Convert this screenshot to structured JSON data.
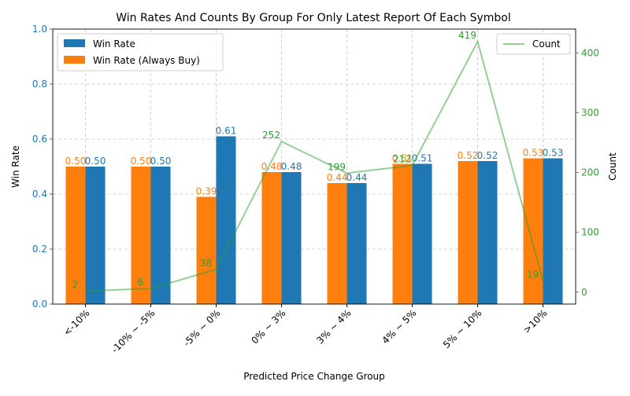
{
  "chart_data": {
    "type": "bar",
    "title": "Win Rates And Counts By Group For Only Latest Report Of Each Symbol",
    "xlabel": "Predicted Price Change Group",
    "ylabel": "Win Rate",
    "y2label": "Count",
    "ylim": [
      0,
      1.0
    ],
    "y2lim": [
      -20,
      440
    ],
    "yticks": [
      "0.0",
      "0.2",
      "0.4",
      "0.6",
      "0.8",
      "1.0"
    ],
    "y2ticks": [
      "0",
      "100",
      "200",
      "300",
      "400"
    ],
    "grid": true,
    "categories": [
      "<-10%",
      "-10% ~ -5%",
      "-5% ~ 0%",
      "0% ~ 3%",
      "3% ~ 4%",
      "4% ~ 5%",
      "5% ~ 10%",
      ">10%"
    ],
    "series": [
      {
        "name": "Win Rate (Always Buy)",
        "kind": "bar",
        "color": "#ff7f0e",
        "values": [
          0.5,
          0.5,
          0.39,
          0.48,
          0.44,
          0.51,
          0.52,
          0.53
        ],
        "labels": [
          "0.50",
          "0.50",
          "0.39",
          "0.48",
          "0.44",
          "0.51",
          "0.52",
          "0.53"
        ]
      },
      {
        "name": "Win Rate",
        "kind": "bar",
        "color": "#1f77b4",
        "values": [
          0.5,
          0.5,
          0.61,
          0.48,
          0.44,
          0.51,
          0.52,
          0.53
        ],
        "labels": [
          "0.50",
          "0.50",
          "0.61",
          "0.48",
          "0.44",
          "0.51",
          "0.52",
          "0.53"
        ]
      },
      {
        "name": "Count",
        "kind": "line",
        "axis": "right",
        "color": "#2ca02c",
        "values": [
          2,
          6,
          38,
          252,
          199,
          212,
          419,
          19
        ],
        "labels": [
          "2",
          "6",
          "38",
          "252",
          "199",
          "212",
          "419",
          "19"
        ]
      }
    ],
    "legend_left": [
      "Win Rate",
      "Win Rate (Always Buy)"
    ],
    "legend_right": [
      "Count"
    ],
    "legend_placement": "left: top-left, right: top-right"
  }
}
